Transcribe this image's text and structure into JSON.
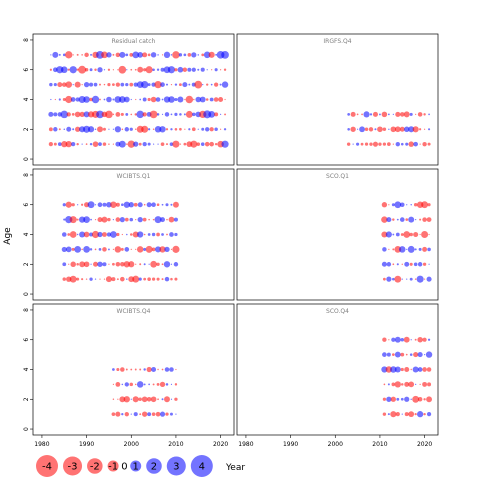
{
  "chart_data": {
    "type": "scatter",
    "xlabel": "Year",
    "ylabel": "Age",
    "xlim": [
      1978,
      2023
    ],
    "ylim": [
      -0.4,
      8.4
    ],
    "x_ticks": [
      1980,
      1990,
      2000,
      2010,
      2020
    ],
    "y_ticks": [
      0,
      2,
      4,
      6,
      8
    ],
    "colors": {
      "positive": "#0000ff",
      "negative": "#ff0000"
    },
    "fill_alpha": 0.55,
    "legend": {
      "placement": "bottom-left",
      "entries": [
        {
          "label": "-4",
          "value": -4
        },
        {
          "label": "-3",
          "value": -3
        },
        {
          "label": "-2",
          "value": -2
        },
        {
          "label": "-1",
          "value": -1
        },
        {
          "label": "0",
          "value": 0
        },
        {
          "label": "1",
          "value": 1
        },
        {
          "label": "2",
          "value": 2
        },
        {
          "label": "3",
          "value": 3
        },
        {
          "label": "4",
          "value": 4
        }
      ]
    },
    "panels": [
      {
        "title": "Residual catch",
        "years": [
          1982,
          2021
        ],
        "ages": [
          1,
          7
        ],
        "max_abs": 2.2,
        "seed": 11,
        "show_x_ticks": false
      },
      {
        "title": "IRGFS.Q4",
        "years": [
          2003,
          2021
        ],
        "ages": [
          1,
          3
        ],
        "max_abs": 1.5,
        "seed": 23,
        "show_x_ticks": false
      },
      {
        "title": "WCIBTS.Q1",
        "years": [
          1985,
          2010
        ],
        "ages": [
          1,
          6
        ],
        "max_abs": 2.0,
        "seed": 37,
        "show_x_ticks": false
      },
      {
        "title": "SCO.Q1",
        "years": [
          2011,
          2021
        ],
        "ages": [
          1,
          6
        ],
        "max_abs": 1.8,
        "seed": 41,
        "show_x_ticks": false
      },
      {
        "title": "WCIBTS.Q4",
        "years": [
          1996,
          2010
        ],
        "ages": [
          1,
          4
        ],
        "max_abs": 1.6,
        "seed": 53,
        "show_x_ticks": true
      },
      {
        "title": "SCO.Q4",
        "years": [
          2011,
          2021
        ],
        "ages": [
          1,
          6
        ],
        "max_abs": 1.7,
        "seed": 67,
        "show_x_ticks": true
      }
    ]
  }
}
